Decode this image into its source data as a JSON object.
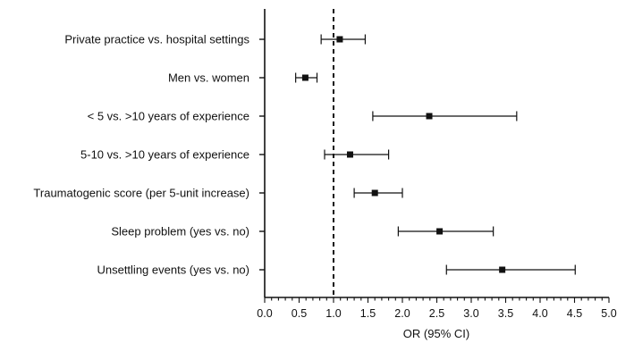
{
  "chart_data": {
    "type": "forest",
    "xlabel": "OR (95% CI)",
    "xlim": [
      0.0,
      5.0
    ],
    "xticks": [
      "0.0",
      "0.5",
      "1.0",
      "1.5",
      "2.0",
      "2.5",
      "3.0",
      "3.5",
      "4.0",
      "4.5",
      "5.0"
    ],
    "reference_line": 1.0,
    "reference_line_style": "dashed",
    "grid": false,
    "categories": [
      "Private practice vs. hospital settings",
      "Men vs. women",
      "< 5 vs. >10 years of experience",
      "5-10 vs. >10 years of experience",
      "Traumatogenic score (per 5-unit increase)",
      "Sleep problem (yes vs. no)",
      "Unsettling events (yes vs. no)"
    ],
    "or": [
      1.09,
      0.59,
      2.39,
      1.24,
      1.6,
      2.54,
      3.45
    ],
    "ci_low": [
      0.82,
      0.45,
      1.57,
      0.87,
      1.3,
      1.94,
      2.64
    ],
    "ci_high": [
      1.46,
      0.76,
      3.66,
      1.8,
      2.0,
      3.32,
      4.51
    ]
  }
}
